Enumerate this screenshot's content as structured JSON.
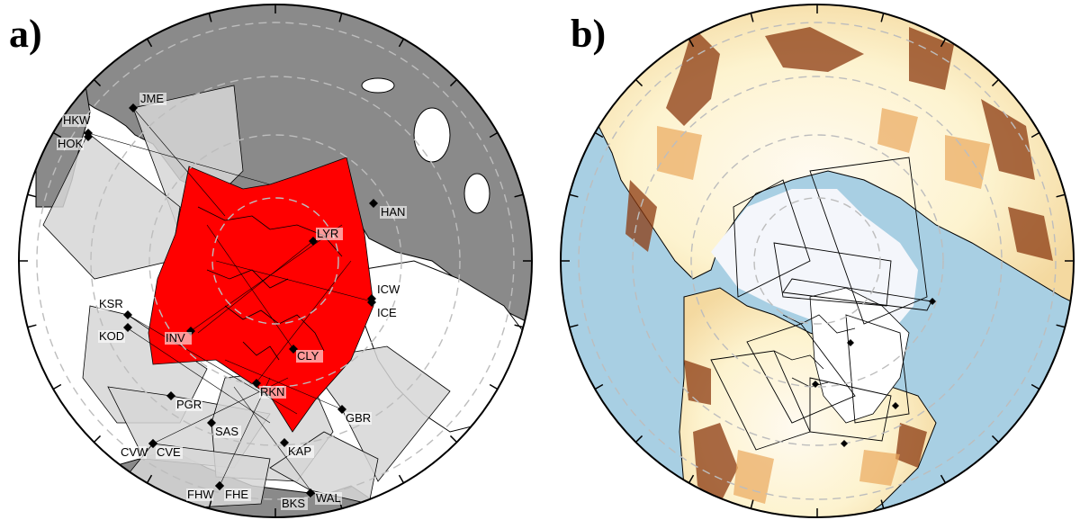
{
  "panels": {
    "a": {
      "label": "a)"
    },
    "b": {
      "label": "b)"
    }
  },
  "stations": [
    {
      "code": "JME",
      "side": "right"
    },
    {
      "code": "HKW",
      "side": "left"
    },
    {
      "code": "HOK",
      "side": "left"
    },
    {
      "code": "HAN",
      "side": "right"
    },
    {
      "code": "LYR",
      "side": "right"
    },
    {
      "code": "ICW",
      "side": "right"
    },
    {
      "code": "ICE",
      "side": "right"
    },
    {
      "code": "KSR",
      "side": "left"
    },
    {
      "code": "KOD",
      "side": "left"
    },
    {
      "code": "INV",
      "side": "left"
    },
    {
      "code": "CLY",
      "side": "right"
    },
    {
      "code": "RKN",
      "side": "right"
    },
    {
      "code": "PGR",
      "side": "right"
    },
    {
      "code": "GBR",
      "side": "right"
    },
    {
      "code": "SAS",
      "side": "right"
    },
    {
      "code": "KAP",
      "side": "right"
    },
    {
      "code": "CVW",
      "side": "left"
    },
    {
      "code": "CVE",
      "side": "right"
    },
    {
      "code": "FHW",
      "side": "left"
    },
    {
      "code": "FHE",
      "side": "right"
    },
    {
      "code": "BKS",
      "side": "left"
    },
    {
      "code": "WAL",
      "side": "right"
    }
  ],
  "colors": {
    "land_dark": "#8a8a8a",
    "fov_gray": "#d6d6d6",
    "fov_red": "#ff0000",
    "ocean": "#a8cfe3",
    "ice": "#f4f6fb",
    "terrain_light": "#fdf3cf",
    "terrain_mid": "#e9b36a",
    "terrain_dark": "#8b3a10"
  }
}
